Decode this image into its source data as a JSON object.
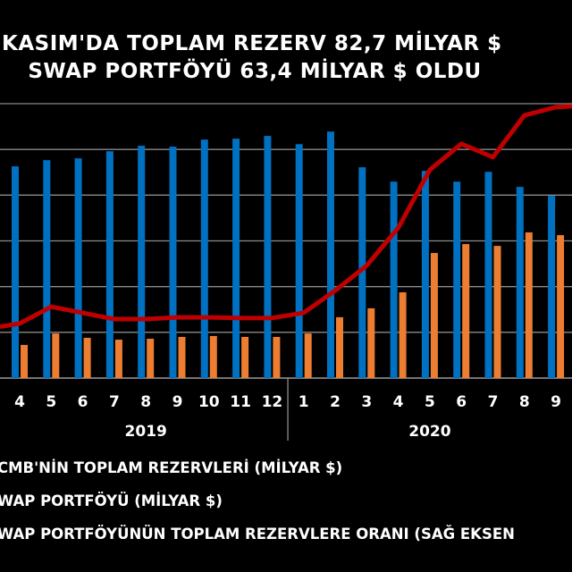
{
  "title": {
    "line1": "KASIM'DA TOPLAM REZERV 82,7 MİLYAR $",
    "line2": "SWAP PORTFÖYÜ 63,4 MİLYAR $ OLDU"
  },
  "chart_data": {
    "type": "bar",
    "categories": [
      "4",
      "5",
      "6",
      "7",
      "8",
      "9",
      "10",
      "11",
      "12",
      "1",
      "2",
      "3",
      "4",
      "5",
      "6",
      "7",
      "8",
      "9"
    ],
    "year_groups": [
      {
        "label": "2019",
        "count": 9
      },
      {
        "label": "2020",
        "count": 9
      }
    ],
    "series": [
      {
        "name": "CMB'NİN TOPLAM REZERVLERİ (MİLYAR $)",
        "type": "bar",
        "axis": "left",
        "color": "#0070C0",
        "values": [
          92.6,
          95.3,
          96.1,
          99.2,
          101.6,
          101.2,
          104.3,
          104.7,
          105.9,
          102.3,
          107.8,
          92.2,
          85.9,
          90.6,
          85.9,
          90.2,
          83.6,
          79.7
        ]
      },
      {
        "name": "WAP PORTFÖYÜ (MİLYAR $)",
        "type": "bar",
        "axis": "left",
        "color": "#ED7D31",
        "values": [
          14.5,
          19.5,
          17.6,
          16.8,
          17.2,
          18.0,
          18.4,
          18.0,
          18.0,
          19.5,
          26.6,
          30.5,
          37.5,
          54.7,
          58.6,
          57.8,
          63.7,
          62.5
        ]
      },
      {
        "name": "WAP PORTFÖYÜNÜN TOPLAM REZERVLERE ORANI (SAĞ EKSEN",
        "type": "line",
        "axis": "right",
        "color": "#C00000",
        "values": [
          15.9,
          20.8,
          19.0,
          17.2,
          17.2,
          17.7,
          17.7,
          17.5,
          17.5,
          19.0,
          25.5,
          32.8,
          43.8,
          60.7,
          68.3,
          64.4,
          76.6,
          79.0
        ]
      }
    ],
    "ylim_left": [
      0,
      120
    ],
    "ylim_right": [
      0,
      80
    ],
    "grid": true,
    "legend_placement": "bottom"
  }
}
